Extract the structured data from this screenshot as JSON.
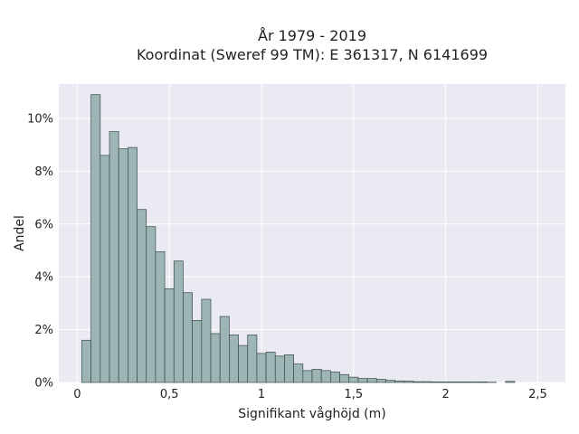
{
  "chart_data": {
    "type": "bar",
    "title": "År 1979 - 2019",
    "subtitle": "Koordinat (Sweref 99 TM): E 361317, N 6141699",
    "xlabel": "Signifikant våghöjd (m)",
    "ylabel": "Andel",
    "xlim": [
      -0.1,
      2.65
    ],
    "ylim": [
      0,
      11.3
    ],
    "grid": true,
    "x_ticks": [
      0,
      0.5,
      1,
      1.5,
      2,
      2.5
    ],
    "x_tick_labels": [
      "0",
      "0,5",
      "1",
      "1,5",
      "2",
      "2,5"
    ],
    "y_ticks": [
      0,
      2,
      4,
      6,
      8,
      10
    ],
    "y_tick_labels": [
      "0%",
      "2%",
      "4%",
      "6%",
      "8%",
      "10%"
    ],
    "bin_width": 0.05,
    "bin_starts": [
      0.025,
      0.075,
      0.125,
      0.175,
      0.225,
      0.275,
      0.325,
      0.375,
      0.425,
      0.475,
      0.525,
      0.575,
      0.625,
      0.675,
      0.725,
      0.775,
      0.825,
      0.875,
      0.925,
      0.975,
      1.025,
      1.075,
      1.125,
      1.175,
      1.225,
      1.275,
      1.325,
      1.375,
      1.425,
      1.475,
      1.525,
      1.575,
      1.625,
      1.675,
      1.725,
      1.775,
      1.825,
      1.875,
      1.925,
      1.975,
      2.025,
      2.075,
      2.125,
      2.175,
      2.225,
      2.325
    ],
    "values": [
      1.6,
      10.9,
      8.6,
      9.5,
      8.85,
      8.9,
      6.55,
      5.9,
      4.95,
      3.55,
      4.6,
      3.4,
      2.35,
      3.15,
      1.85,
      2.5,
      1.8,
      1.4,
      1.8,
      1.1,
      1.15,
      1.0,
      1.05,
      0.7,
      0.45,
      0.5,
      0.45,
      0.4,
      0.3,
      0.2,
      0.15,
      0.15,
      0.12,
      0.08,
      0.06,
      0.05,
      0.03,
      0.03,
      0.02,
      0.02,
      0.02,
      0.02,
      0.02,
      0.02,
      0.01,
      0.04
    ],
    "colors": {
      "background": "#eaeaf2",
      "grid": "#ffffff",
      "bar_fill": "#9db5b4",
      "bar_edge": "#3a4a4a",
      "text": "#222222"
    }
  }
}
